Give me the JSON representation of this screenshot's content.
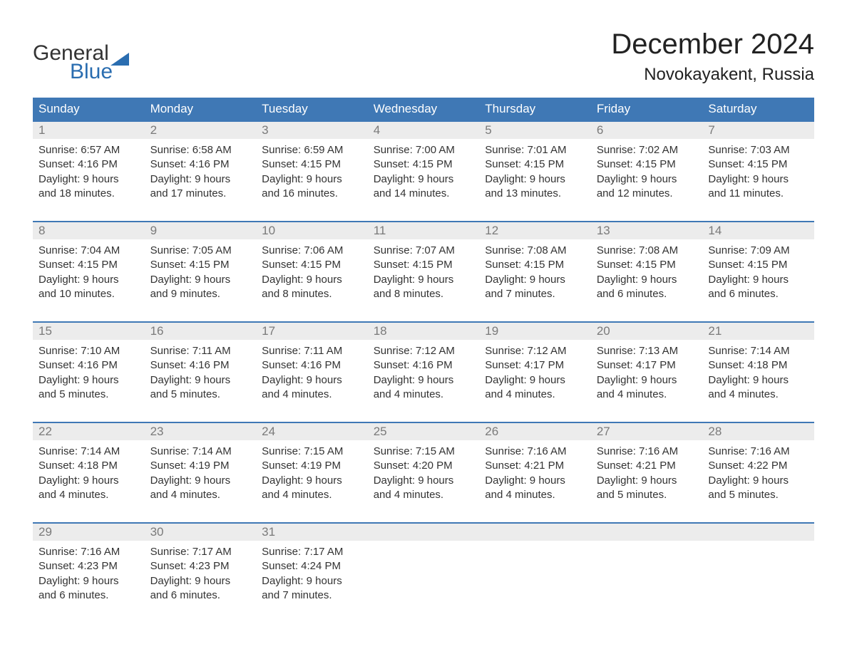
{
  "brand": {
    "word1": "General",
    "word2": "Blue",
    "word1_color": "#333333",
    "word2_color": "#2a6db0",
    "flag_color": "#2a6db0"
  },
  "title": "December 2024",
  "location": "Novokayakent, Russia",
  "colors": {
    "header_bg": "#3f78b5",
    "header_text": "#ffffff",
    "daynum_bg": "#ececec",
    "daynum_text": "#7a7a7a",
    "body_text": "#333333",
    "week_border": "#3f78b5",
    "page_bg": "#ffffff"
  },
  "typography": {
    "title_fontsize": 40,
    "location_fontsize": 24,
    "weekday_fontsize": 17,
    "daynum_fontsize": 17,
    "cell_fontsize": 15
  },
  "weekdays": [
    "Sunday",
    "Monday",
    "Tuesday",
    "Wednesday",
    "Thursday",
    "Friday",
    "Saturday"
  ],
  "weeks": [
    [
      {
        "num": "1",
        "sunrise": "Sunrise: 6:57 AM",
        "sunset": "Sunset: 4:16 PM",
        "daylight1": "Daylight: 9 hours",
        "daylight2": "and 18 minutes."
      },
      {
        "num": "2",
        "sunrise": "Sunrise: 6:58 AM",
        "sunset": "Sunset: 4:16 PM",
        "daylight1": "Daylight: 9 hours",
        "daylight2": "and 17 minutes."
      },
      {
        "num": "3",
        "sunrise": "Sunrise: 6:59 AM",
        "sunset": "Sunset: 4:15 PM",
        "daylight1": "Daylight: 9 hours",
        "daylight2": "and 16 minutes."
      },
      {
        "num": "4",
        "sunrise": "Sunrise: 7:00 AM",
        "sunset": "Sunset: 4:15 PM",
        "daylight1": "Daylight: 9 hours",
        "daylight2": "and 14 minutes."
      },
      {
        "num": "5",
        "sunrise": "Sunrise: 7:01 AM",
        "sunset": "Sunset: 4:15 PM",
        "daylight1": "Daylight: 9 hours",
        "daylight2": "and 13 minutes."
      },
      {
        "num": "6",
        "sunrise": "Sunrise: 7:02 AM",
        "sunset": "Sunset: 4:15 PM",
        "daylight1": "Daylight: 9 hours",
        "daylight2": "and 12 minutes."
      },
      {
        "num": "7",
        "sunrise": "Sunrise: 7:03 AM",
        "sunset": "Sunset: 4:15 PM",
        "daylight1": "Daylight: 9 hours",
        "daylight2": "and 11 minutes."
      }
    ],
    [
      {
        "num": "8",
        "sunrise": "Sunrise: 7:04 AM",
        "sunset": "Sunset: 4:15 PM",
        "daylight1": "Daylight: 9 hours",
        "daylight2": "and 10 minutes."
      },
      {
        "num": "9",
        "sunrise": "Sunrise: 7:05 AM",
        "sunset": "Sunset: 4:15 PM",
        "daylight1": "Daylight: 9 hours",
        "daylight2": "and 9 minutes."
      },
      {
        "num": "10",
        "sunrise": "Sunrise: 7:06 AM",
        "sunset": "Sunset: 4:15 PM",
        "daylight1": "Daylight: 9 hours",
        "daylight2": "and 8 minutes."
      },
      {
        "num": "11",
        "sunrise": "Sunrise: 7:07 AM",
        "sunset": "Sunset: 4:15 PM",
        "daylight1": "Daylight: 9 hours",
        "daylight2": "and 8 minutes."
      },
      {
        "num": "12",
        "sunrise": "Sunrise: 7:08 AM",
        "sunset": "Sunset: 4:15 PM",
        "daylight1": "Daylight: 9 hours",
        "daylight2": "and 7 minutes."
      },
      {
        "num": "13",
        "sunrise": "Sunrise: 7:08 AM",
        "sunset": "Sunset: 4:15 PM",
        "daylight1": "Daylight: 9 hours",
        "daylight2": "and 6 minutes."
      },
      {
        "num": "14",
        "sunrise": "Sunrise: 7:09 AM",
        "sunset": "Sunset: 4:15 PM",
        "daylight1": "Daylight: 9 hours",
        "daylight2": "and 6 minutes."
      }
    ],
    [
      {
        "num": "15",
        "sunrise": "Sunrise: 7:10 AM",
        "sunset": "Sunset: 4:16 PM",
        "daylight1": "Daylight: 9 hours",
        "daylight2": "and 5 minutes."
      },
      {
        "num": "16",
        "sunrise": "Sunrise: 7:11 AM",
        "sunset": "Sunset: 4:16 PM",
        "daylight1": "Daylight: 9 hours",
        "daylight2": "and 5 minutes."
      },
      {
        "num": "17",
        "sunrise": "Sunrise: 7:11 AM",
        "sunset": "Sunset: 4:16 PM",
        "daylight1": "Daylight: 9 hours",
        "daylight2": "and 4 minutes."
      },
      {
        "num": "18",
        "sunrise": "Sunrise: 7:12 AM",
        "sunset": "Sunset: 4:16 PM",
        "daylight1": "Daylight: 9 hours",
        "daylight2": "and 4 minutes."
      },
      {
        "num": "19",
        "sunrise": "Sunrise: 7:12 AM",
        "sunset": "Sunset: 4:17 PM",
        "daylight1": "Daylight: 9 hours",
        "daylight2": "and 4 minutes."
      },
      {
        "num": "20",
        "sunrise": "Sunrise: 7:13 AM",
        "sunset": "Sunset: 4:17 PM",
        "daylight1": "Daylight: 9 hours",
        "daylight2": "and 4 minutes."
      },
      {
        "num": "21",
        "sunrise": "Sunrise: 7:14 AM",
        "sunset": "Sunset: 4:18 PM",
        "daylight1": "Daylight: 9 hours",
        "daylight2": "and 4 minutes."
      }
    ],
    [
      {
        "num": "22",
        "sunrise": "Sunrise: 7:14 AM",
        "sunset": "Sunset: 4:18 PM",
        "daylight1": "Daylight: 9 hours",
        "daylight2": "and 4 minutes."
      },
      {
        "num": "23",
        "sunrise": "Sunrise: 7:14 AM",
        "sunset": "Sunset: 4:19 PM",
        "daylight1": "Daylight: 9 hours",
        "daylight2": "and 4 minutes."
      },
      {
        "num": "24",
        "sunrise": "Sunrise: 7:15 AM",
        "sunset": "Sunset: 4:19 PM",
        "daylight1": "Daylight: 9 hours",
        "daylight2": "and 4 minutes."
      },
      {
        "num": "25",
        "sunrise": "Sunrise: 7:15 AM",
        "sunset": "Sunset: 4:20 PM",
        "daylight1": "Daylight: 9 hours",
        "daylight2": "and 4 minutes."
      },
      {
        "num": "26",
        "sunrise": "Sunrise: 7:16 AM",
        "sunset": "Sunset: 4:21 PM",
        "daylight1": "Daylight: 9 hours",
        "daylight2": "and 4 minutes."
      },
      {
        "num": "27",
        "sunrise": "Sunrise: 7:16 AM",
        "sunset": "Sunset: 4:21 PM",
        "daylight1": "Daylight: 9 hours",
        "daylight2": "and 5 minutes."
      },
      {
        "num": "28",
        "sunrise": "Sunrise: 7:16 AM",
        "sunset": "Sunset: 4:22 PM",
        "daylight1": "Daylight: 9 hours",
        "daylight2": "and 5 minutes."
      }
    ],
    [
      {
        "num": "29",
        "sunrise": "Sunrise: 7:16 AM",
        "sunset": "Sunset: 4:23 PM",
        "daylight1": "Daylight: 9 hours",
        "daylight2": "and 6 minutes."
      },
      {
        "num": "30",
        "sunrise": "Sunrise: 7:17 AM",
        "sunset": "Sunset: 4:23 PM",
        "daylight1": "Daylight: 9 hours",
        "daylight2": "and 6 minutes."
      },
      {
        "num": "31",
        "sunrise": "Sunrise: 7:17 AM",
        "sunset": "Sunset: 4:24 PM",
        "daylight1": "Daylight: 9 hours",
        "daylight2": "and 7 minutes."
      },
      null,
      null,
      null,
      null
    ]
  ]
}
